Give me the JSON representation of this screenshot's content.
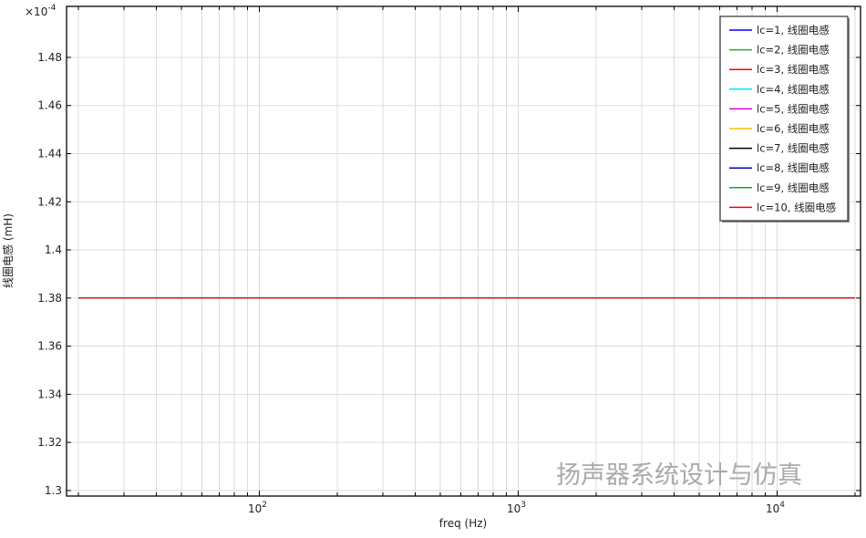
{
  "chart_data": {
    "type": "line",
    "title": "",
    "xlabel": "freq (Hz)",
    "ylabel": "线圈电感 (mH)",
    "x_scale": "log",
    "xlim": [
      18,
      21000
    ],
    "x_ticks": [
      100,
      1000,
      10000
    ],
    "x_tick_labels": [
      {
        "base": "10",
        "exp": "2"
      },
      {
        "base": "10",
        "exp": "3"
      },
      {
        "base": "10",
        "exp": "4"
      }
    ],
    "y_scale_factor": "×10",
    "y_scale_exponent": "-4",
    "ylim": [
      1.2977,
      1.5012
    ],
    "y_ticks": [
      1.3,
      1.32,
      1.34,
      1.36,
      1.38,
      1.4,
      1.42,
      1.44,
      1.46,
      1.48
    ],
    "y_tick_labels": [
      "1.3",
      "1.32",
      "1.34",
      "1.36",
      "1.38",
      "1.4",
      "1.42",
      "1.44",
      "1.46",
      "1.48"
    ],
    "grid": true,
    "legend_position": "top-right",
    "x": [
      20,
      20000
    ],
    "series": [
      {
        "name": "lc=1, 线圈电感",
        "color": "#0000ff",
        "values": [
          1.38,
          1.38
        ]
      },
      {
        "name": "lc=2, 线圈电感",
        "color": "#22b030",
        "values": [
          1.38,
          1.38
        ]
      },
      {
        "name": "lc=3, 线圈电感",
        "color": "#ff0000",
        "values": [
          1.38,
          1.38
        ]
      },
      {
        "name": "lc=4, 线圈电感",
        "color": "#00e5ee",
        "values": [
          1.38,
          1.38
        ]
      },
      {
        "name": "lc=5, 线圈电感",
        "color": "#e000e0",
        "values": [
          1.38,
          1.38
        ]
      },
      {
        "name": "lc=6, 线圈电感",
        "color": "#ffbf00",
        "values": [
          1.38,
          1.38
        ]
      },
      {
        "name": "lc=7, 线圈电感",
        "color": "#000000",
        "values": [
          1.38,
          1.38
        ]
      },
      {
        "name": "lc=8, 线圈电感",
        "color": "#0000c0",
        "values": [
          1.38,
          1.38
        ]
      },
      {
        "name": "lc=9, 线圈电感",
        "color": "#22a040",
        "values": [
          1.38,
          1.38
        ]
      },
      {
        "name": "lc=10, 线圈电感",
        "color": "#ff0000",
        "values": [
          1.38,
          1.38
        ]
      }
    ]
  },
  "watermark": "扬声器系统设计与仿真"
}
